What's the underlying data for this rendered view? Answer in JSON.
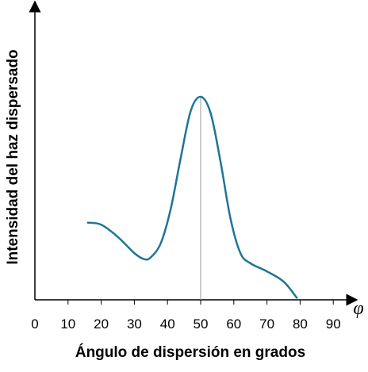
{
  "chart_data": {
    "type": "line",
    "xlabel": "Ángulo de dispersión en grados",
    "ylabel": "Intensidad del haz dispersado",
    "x_axis_symbol": "φ",
    "x_ticks": [
      "0",
      "10",
      "20",
      "30",
      "40",
      "50",
      "60",
      "70",
      "80",
      "90"
    ],
    "xlim": [
      0,
      90
    ],
    "y_ticks_shown": false,
    "grid": false,
    "peak_marker_x": 50,
    "series": [
      {
        "color": "#1f7596",
        "x": [
          16,
          20,
          25,
          30,
          33,
          35,
          38,
          41,
          44,
          47,
          50,
          53,
          56,
          59,
          62,
          65,
          70,
          75,
          79
        ],
        "y": [
          0.38,
          0.37,
          0.31,
          0.23,
          0.2,
          0.21,
          0.28,
          0.45,
          0.7,
          0.93,
          1.0,
          0.92,
          0.68,
          0.4,
          0.23,
          0.18,
          0.14,
          0.09,
          0.01
        ]
      }
    ]
  }
}
